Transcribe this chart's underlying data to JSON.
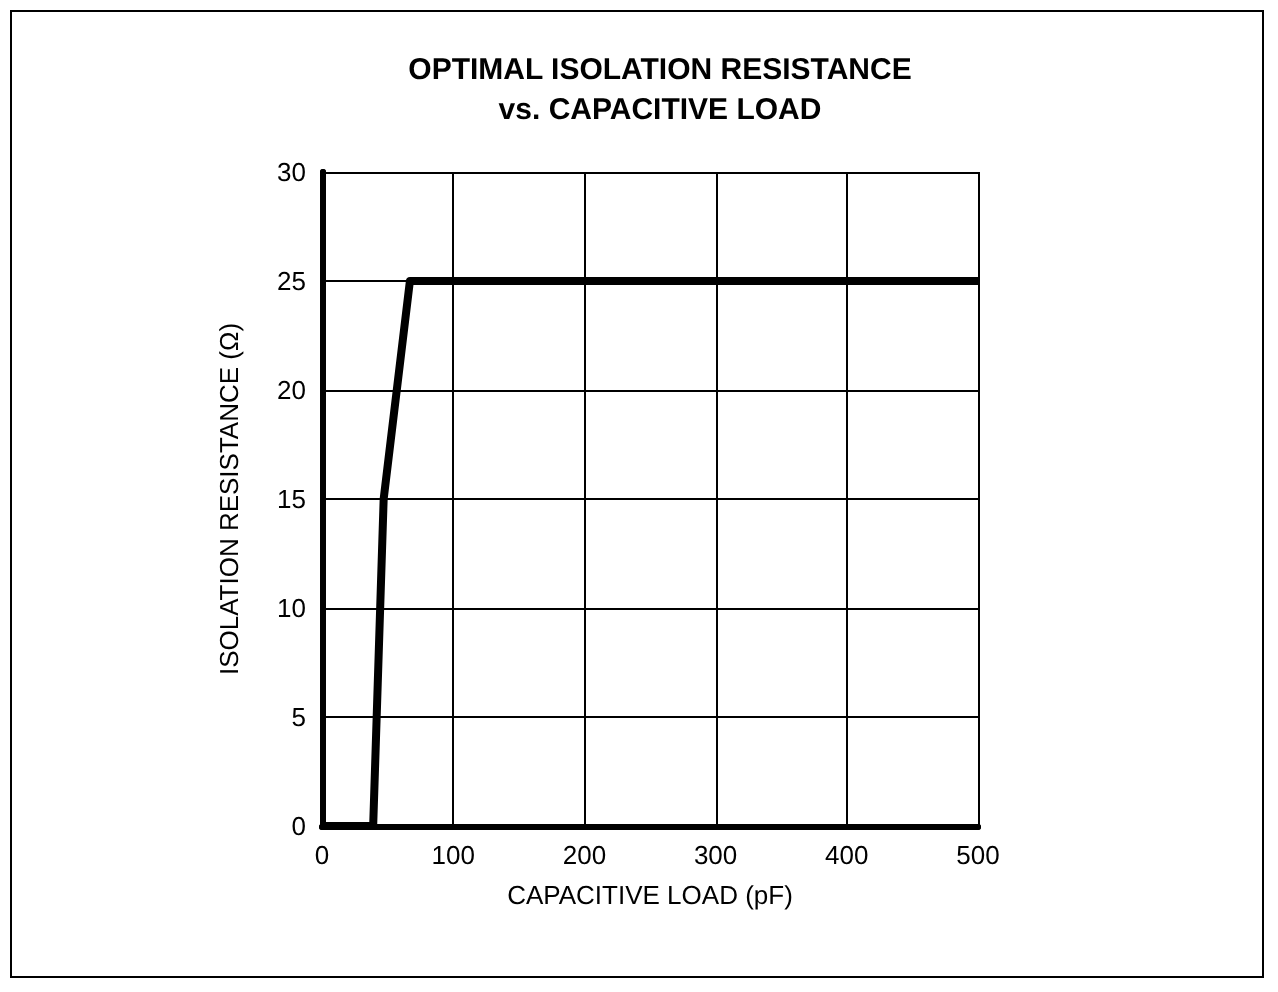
{
  "chart_data": {
    "type": "line",
    "title": "OPTIMAL ISOLATION RESISTANCE\nvs. CAPACITIVE LOAD",
    "xlabel": "CAPACITIVE LOAD (pF)",
    "ylabel": "ISOLATION RESISTANCE (Ω)",
    "x": [
      0,
      39,
      47,
      67,
      500
    ],
    "series": [
      {
        "color": "#000000",
        "values": [
          0,
          0,
          15,
          25,
          25
        ]
      }
    ],
    "xlim": [
      0,
      500
    ],
    "xticks": [
      0,
      100,
      200,
      300,
      400,
      500
    ],
    "ylim": [
      0,
      30
    ],
    "yticks": [
      0,
      5,
      10,
      15,
      20,
      25,
      30
    ],
    "grid": true,
    "marker": "none",
    "line_style": "solid"
  }
}
